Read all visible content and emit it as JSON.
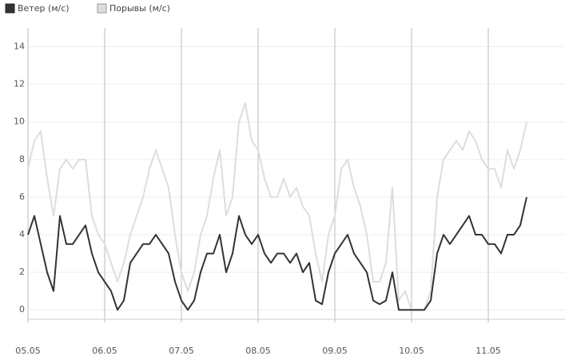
{
  "chart_data": {
    "type": "line",
    "categories": [
      "05.05",
      null,
      null,
      null,
      null,
      null,
      null,
      null,
      null,
      null,
      null,
      null,
      "06.05",
      null,
      null,
      null,
      null,
      null,
      null,
      null,
      null,
      null,
      null,
      null,
      "07.05",
      null,
      null,
      null,
      null,
      null,
      null,
      null,
      null,
      null,
      null,
      null,
      "08.05",
      null,
      null,
      null,
      null,
      null,
      null,
      null,
      null,
      null,
      null,
      null,
      "09.05",
      null,
      null,
      null,
      null,
      null,
      null,
      null,
      null,
      null,
      null,
      null,
      "10.05",
      null,
      null,
      null,
      null,
      null,
      null,
      null,
      null,
      null,
      null,
      null,
      "11.05",
      null,
      null,
      null,
      null,
      null,
      null
    ],
    "series": [
      {
        "name": "Ветер (м/с)",
        "color": "#333333",
        "values": [
          4,
          5,
          3.5,
          2,
          1,
          5,
          3.5,
          3.5,
          4,
          4.5,
          3,
          2,
          1.5,
          1,
          0,
          0.5,
          2.5,
          3,
          3.5,
          3.5,
          4,
          3.5,
          3,
          1.5,
          0.5,
          0,
          0.5,
          2,
          3,
          3,
          4,
          2,
          3,
          5,
          4,
          3.5,
          4,
          3,
          2.5,
          3,
          3,
          2.5,
          3,
          2,
          2.5,
          0.5,
          0.3,
          2,
          3,
          3.5,
          4,
          3,
          2.5,
          2,
          0.5,
          0.3,
          0.5,
          2,
          0,
          0,
          0,
          0,
          0,
          0.5,
          3,
          4,
          3.5,
          4,
          4.5,
          5,
          4,
          4,
          3.5,
          3.5,
          3,
          4,
          4,
          4.5,
          6
        ]
      },
      {
        "name": "Порывы (м/с)",
        "color": "#dddddd",
        "values": [
          7.5,
          9,
          9.5,
          7,
          5,
          7.5,
          8,
          7.5,
          8,
          8,
          5,
          4,
          3.5,
          2.5,
          1.5,
          2.5,
          4,
          5,
          6,
          7.5,
          8.5,
          7.5,
          6.5,
          4,
          2,
          1,
          2,
          4,
          5,
          7,
          8.5,
          5,
          6,
          10,
          11,
          9,
          8.5,
          7,
          6,
          6,
          7,
          6,
          6.5,
          5.5,
          5,
          3,
          1.5,
          4,
          5,
          7.5,
          8,
          6.5,
          5.5,
          4,
          1.5,
          1.5,
          2.5,
          6.5,
          0.5,
          1,
          0,
          0,
          0,
          1,
          6,
          8,
          8.5,
          9,
          8.5,
          9.5,
          9,
          8,
          7.5,
          7.5,
          6.5,
          8.5,
          7.5,
          8.5,
          10
        ]
      }
    ],
    "ylim": [
      -0.5,
      15
    ],
    "yticks": [
      0,
      2,
      4,
      6,
      8,
      10,
      12,
      14
    ],
    "grid": true
  }
}
